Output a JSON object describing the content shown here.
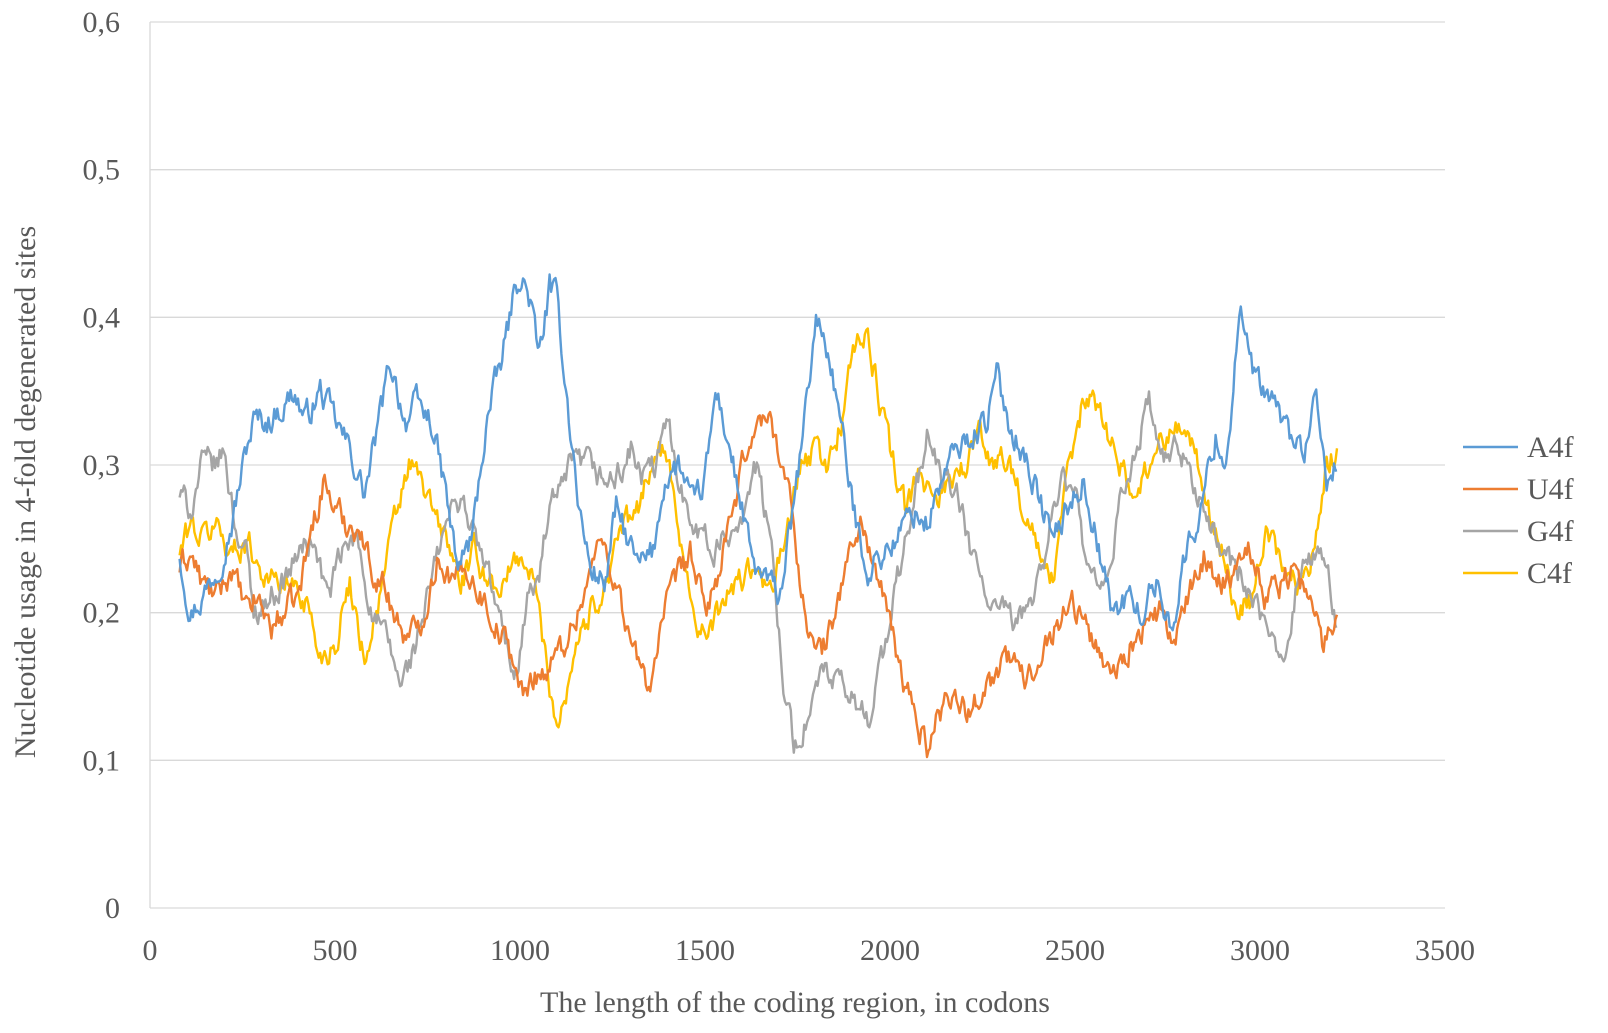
{
  "chart_data": {
    "type": "line",
    "title": "",
    "xlabel": "The length of the coding region, in codons",
    "ylabel": "Nucleotide usage in 4-fold degenerated sites",
    "xlim": [
      0,
      3500
    ],
    "ylim": [
      0,
      0.6
    ],
    "xticks": [
      0,
      500,
      1000,
      1500,
      2000,
      2500,
      3000,
      3500
    ],
    "xtick_labels": [
      "0",
      "500",
      "1000",
      "1500",
      "2000",
      "2500",
      "3000",
      "3500"
    ],
    "yticks": [
      0,
      0.1,
      0.2,
      0.3,
      0.4,
      0.5,
      0.6
    ],
    "ytick_labels": [
      "0",
      "0,1",
      "0,2",
      "0,3",
      "0,4",
      "0,5",
      "0,6"
    ],
    "grid": true,
    "legend_position": "right",
    "x_range": [
      80,
      3210
    ],
    "series": [
      {
        "name": "A4f",
        "color": "#5b9bd5",
        "x": [
          80,
          110,
          140,
          180,
          220,
          260,
          280,
          320,
          360,
          390,
          420,
          460,
          500,
          540,
          580,
          620,
          650,
          690,
          720,
          760,
          800,
          830,
          870,
          910,
          950,
          980,
          1000,
          1030,
          1050,
          1080,
          1100,
          1130,
          1160,
          1190,
          1230,
          1260,
          1290,
          1320,
          1360,
          1390,
          1430,
          1470,
          1500,
          1530,
          1560,
          1600,
          1630,
          1670,
          1700,
          1740,
          1770,
          1800,
          1830,
          1860,
          1900,
          1940,
          1980,
          2020,
          2060,
          2100,
          2140,
          2180,
          2220,
          2260,
          2290,
          2320,
          2360,
          2400,
          2440,
          2480,
          2520,
          2560,
          2600,
          2640,
          2680,
          2720,
          2760,
          2800,
          2840,
          2880,
          2910,
          2945,
          2970,
          3000,
          3040,
          3080,
          3120,
          3150,
          3180,
          3210
        ],
        "values": [
          0.24,
          0.2,
          0.21,
          0.23,
          0.26,
          0.31,
          0.33,
          0.33,
          0.34,
          0.35,
          0.33,
          0.35,
          0.33,
          0.31,
          0.28,
          0.33,
          0.37,
          0.33,
          0.34,
          0.33,
          0.28,
          0.23,
          0.25,
          0.33,
          0.37,
          0.41,
          0.43,
          0.41,
          0.37,
          0.42,
          0.41,
          0.34,
          0.27,
          0.23,
          0.22,
          0.27,
          0.25,
          0.23,
          0.24,
          0.29,
          0.3,
          0.27,
          0.29,
          0.35,
          0.32,
          0.27,
          0.23,
          0.22,
          0.21,
          0.27,
          0.33,
          0.4,
          0.38,
          0.34,
          0.27,
          0.23,
          0.24,
          0.25,
          0.27,
          0.26,
          0.29,
          0.31,
          0.32,
          0.33,
          0.36,
          0.33,
          0.31,
          0.28,
          0.25,
          0.27,
          0.29,
          0.25,
          0.2,
          0.21,
          0.2,
          0.22,
          0.19,
          0.24,
          0.27,
          0.32,
          0.3,
          0.41,
          0.37,
          0.35,
          0.34,
          0.32,
          0.31,
          0.34,
          0.29,
          0.3
        ]
      },
      {
        "name": "U4f",
        "color": "#ed7d31",
        "x": [
          80,
          110,
          140,
          180,
          220,
          260,
          290,
          330,
          360,
          400,
          440,
          470,
          500,
          530,
          560,
          600,
          630,
          660,
          700,
          740,
          780,
          820,
          860,
          900,
          940,
          980,
          1010,
          1040,
          1070,
          1100,
          1140,
          1180,
          1220,
          1250,
          1280,
          1310,
          1350,
          1380,
          1420,
          1460,
          1500,
          1540,
          1580,
          1620,
          1650,
          1680,
          1710,
          1740,
          1770,
          1800,
          1830,
          1860,
          1890,
          1920,
          1950,
          1980,
          2010,
          2040,
          2070,
          2100,
          2130,
          2170,
          2210,
          2250,
          2290,
          2330,
          2370,
          2410,
          2450,
          2490,
          2530,
          2570,
          2610,
          2650,
          2690,
          2730,
          2770,
          2810,
          2850,
          2890,
          2930,
          2970,
          3010,
          3050,
          3090,
          3130,
          3170,
          3210
        ],
        "values": [
          0.23,
          0.24,
          0.22,
          0.21,
          0.23,
          0.2,
          0.21,
          0.19,
          0.2,
          0.21,
          0.26,
          0.29,
          0.27,
          0.26,
          0.26,
          0.23,
          0.22,
          0.2,
          0.18,
          0.2,
          0.24,
          0.22,
          0.23,
          0.21,
          0.19,
          0.17,
          0.14,
          0.16,
          0.16,
          0.17,
          0.19,
          0.22,
          0.25,
          0.23,
          0.2,
          0.17,
          0.15,
          0.19,
          0.22,
          0.24,
          0.2,
          0.23,
          0.27,
          0.32,
          0.33,
          0.33,
          0.3,
          0.26,
          0.2,
          0.17,
          0.18,
          0.21,
          0.24,
          0.26,
          0.24,
          0.21,
          0.18,
          0.15,
          0.13,
          0.11,
          0.13,
          0.15,
          0.13,
          0.15,
          0.16,
          0.17,
          0.15,
          0.18,
          0.19,
          0.21,
          0.19,
          0.17,
          0.16,
          0.18,
          0.19,
          0.2,
          0.18,
          0.21,
          0.24,
          0.22,
          0.23,
          0.25,
          0.21,
          0.22,
          0.23,
          0.21,
          0.18,
          0.2
        ]
      },
      {
        "name": "G4f",
        "color": "#a5a5a5",
        "x": [
          80,
          110,
          140,
          180,
          200,
          230,
          260,
          280,
          320,
          360,
          400,
          440,
          480,
          520,
          560,
          600,
          640,
          680,
          720,
          760,
          800,
          840,
          880,
          920,
          960,
          990,
          1020,
          1050,
          1080,
          1110,
          1140,
          1180,
          1220,
          1260,
          1300,
          1330,
          1370,
          1400,
          1440,
          1480,
          1520,
          1560,
          1600,
          1640,
          1680,
          1700,
          1720,
          1740,
          1780,
          1820,
          1860,
          1900,
          1940,
          1980,
          2020,
          2060,
          2100,
          2140,
          2180,
          2220,
          2260,
          2300,
          2340,
          2380,
          2420,
          2460,
          2500,
          2540,
          2580,
          2620,
          2660,
          2700,
          2740,
          2780,
          2820,
          2860,
          2900,
          2940,
          2980,
          3020,
          3060,
          3100,
          3140,
          3180,
          3210
        ],
        "values": [
          0.28,
          0.27,
          0.3,
          0.3,
          0.31,
          0.26,
          0.24,
          0.2,
          0.21,
          0.22,
          0.24,
          0.25,
          0.21,
          0.24,
          0.25,
          0.2,
          0.18,
          0.15,
          0.18,
          0.22,
          0.26,
          0.28,
          0.25,
          0.22,
          0.18,
          0.16,
          0.21,
          0.22,
          0.27,
          0.28,
          0.3,
          0.3,
          0.29,
          0.29,
          0.31,
          0.29,
          0.3,
          0.33,
          0.28,
          0.26,
          0.24,
          0.25,
          0.27,
          0.3,
          0.24,
          0.19,
          0.14,
          0.11,
          0.13,
          0.16,
          0.15,
          0.14,
          0.13,
          0.17,
          0.22,
          0.27,
          0.32,
          0.29,
          0.28,
          0.24,
          0.21,
          0.2,
          0.19,
          0.21,
          0.24,
          0.29,
          0.28,
          0.22,
          0.21,
          0.27,
          0.31,
          0.34,
          0.3,
          0.31,
          0.29,
          0.26,
          0.24,
          0.23,
          0.21,
          0.18,
          0.17,
          0.22,
          0.24,
          0.23,
          0.19
        ]
      },
      {
        "name": "C4f",
        "color": "#ffc000",
        "x": [
          80,
          110,
          140,
          180,
          220,
          260,
          300,
          340,
          380,
          420,
          460,
          500,
          540,
          580,
          620,
          660,
          700,
          730,
          760,
          800,
          840,
          880,
          920,
          960,
          1000,
          1040,
          1080,
          1100,
          1120,
          1150,
          1190,
          1230,
          1270,
          1310,
          1350,
          1390,
          1430,
          1470,
          1510,
          1550,
          1590,
          1630,
          1670,
          1710,
          1750,
          1790,
          1830,
          1870,
          1900,
          1930,
          1960,
          2000,
          2040,
          2080,
          2120,
          2160,
          2200,
          2240,
          2280,
          2320,
          2360,
          2400,
          2440,
          2480,
          2520,
          2550,
          2580,
          2620,
          2660,
          2700,
          2740,
          2780,
          2820,
          2860,
          2900,
          2940,
          2980,
          3020,
          3060,
          3100,
          3140,
          3180,
          3210
        ],
        "values": [
          0.24,
          0.26,
          0.25,
          0.26,
          0.24,
          0.25,
          0.23,
          0.22,
          0.22,
          0.21,
          0.17,
          0.18,
          0.22,
          0.17,
          0.21,
          0.26,
          0.3,
          0.29,
          0.27,
          0.25,
          0.22,
          0.24,
          0.22,
          0.22,
          0.24,
          0.22,
          0.15,
          0.13,
          0.14,
          0.18,
          0.2,
          0.22,
          0.26,
          0.26,
          0.3,
          0.31,
          0.26,
          0.2,
          0.18,
          0.21,
          0.22,
          0.23,
          0.21,
          0.24,
          0.29,
          0.31,
          0.3,
          0.33,
          0.38,
          0.39,
          0.36,
          0.31,
          0.27,
          0.29,
          0.28,
          0.29,
          0.3,
          0.32,
          0.3,
          0.31,
          0.27,
          0.24,
          0.22,
          0.29,
          0.34,
          0.35,
          0.33,
          0.3,
          0.28,
          0.3,
          0.32,
          0.33,
          0.31,
          0.27,
          0.24,
          0.2,
          0.21,
          0.26,
          0.23,
          0.22,
          0.24,
          0.3,
          0.31
        ]
      }
    ]
  }
}
